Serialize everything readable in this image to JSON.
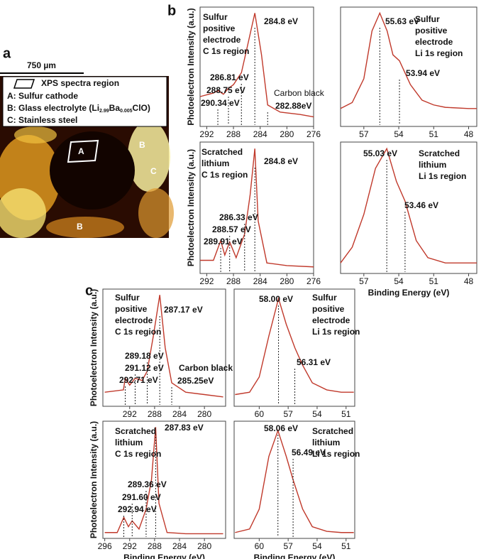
{
  "panel_a": {
    "label": "a",
    "scale": "750 µm",
    "legend": {
      "title": "XPS spectra region",
      "a": "A: Sulfur cathode",
      "b": [
        "B: Glass electrolyte (Li",
        "2.99",
        "Ba",
        "0.005",
        "ClO)"
      ],
      "c": "C: Stainless steel"
    },
    "marks": [
      "A",
      "B",
      "C",
      "B"
    ]
  },
  "panel_labels": [
    "b",
    "c"
  ],
  "chart_data": [
    {
      "type": "line",
      "text": [
        "Sulfur",
        "positive",
        "electrode",
        "C 1s region"
      ],
      "ylabel": "Photoelectron Intensity (a.u.)",
      "xlim": [
        293,
        276
      ],
      "xticks": [
        292,
        288,
        284,
        280,
        276
      ],
      "ylim": [
        0,
        100
      ],
      "annotation": "Carbon black",
      "peaks": [
        {
          "value": 284.8,
          "label": "284.8 eV"
        },
        {
          "value": 286.81,
          "label": "286.81 eV"
        },
        {
          "value": 288.75,
          "label": "288.75 eV"
        },
        {
          "value": 290.34,
          "label": "290.34 eV"
        },
        {
          "value": 282.88,
          "label": "282.88eV"
        }
      ],
      "series": [
        {
          "color": "#c0392b",
          "x": [
            293,
            291,
            290.3,
            289.5,
            288.75,
            288,
            286.81,
            285.8,
            284.8,
            283.8,
            282.88,
            281,
            278,
            276
          ],
          "values": [
            25,
            28,
            30,
            27,
            32,
            35,
            45,
            70,
            95,
            60,
            18,
            12,
            10,
            8
          ]
        }
      ]
    },
    {
      "type": "line",
      "text": [
        "Sulfur",
        "positive",
        "electrode",
        "Li 1s region"
      ],
      "xlim": [
        59,
        47.3
      ],
      "xticks": [
        57,
        54,
        51,
        48
      ],
      "ylim": [
        0,
        100
      ],
      "peaks": [
        {
          "value": 55.63,
          "label": "55.63 eV"
        },
        {
          "value": 53.94,
          "label": "53.94 eV"
        }
      ],
      "series": [
        {
          "color": "#c0392b",
          "x": [
            59,
            58,
            57,
            56.3,
            55.63,
            55,
            54.5,
            53.94,
            53,
            52,
            51,
            50,
            48,
            47.3
          ],
          "values": [
            15,
            20,
            40,
            80,
            95,
            80,
            60,
            55,
            35,
            22,
            18,
            16,
            15,
            15
          ]
        }
      ]
    },
    {
      "type": "line",
      "text": [
        "Scratched",
        "lithium",
        "C 1s region"
      ],
      "ylabel": "Photoelectron Intensity (a.u.)",
      "xlim": [
        293,
        276
      ],
      "xticks": [
        292,
        288,
        284,
        280,
        276
      ],
      "ylim": [
        0,
        100
      ],
      "peaks": [
        {
          "value": 284.8,
          "label": "284.8 eV"
        },
        {
          "value": 286.33,
          "label": "286.33 eV"
        },
        {
          "value": 288.57,
          "label": "288.57 eV"
        },
        {
          "value": 289.91,
          "label": "289.91 eV"
        }
      ],
      "series": [
        {
          "color": "#c0392b",
          "x": [
            293,
            291,
            289.91,
            289.3,
            288.57,
            287.6,
            286.33,
            285.5,
            284.8,
            284.3,
            283,
            280,
            276
          ],
          "values": [
            10,
            10,
            25,
            14,
            24,
            12,
            30,
            60,
            95,
            40,
            8,
            6,
            5
          ]
        }
      ]
    },
    {
      "type": "line",
      "text": [
        "Scratched",
        "lithium",
        "Li 1s region"
      ],
      "xlabel": "Binding Energy (eV)",
      "xlim": [
        59,
        47.3
      ],
      "xticks": [
        57,
        54,
        51,
        48
      ],
      "ylim": [
        0,
        100
      ],
      "peaks": [
        {
          "value": 55.03,
          "label": "55.03 eV"
        },
        {
          "value": 53.46,
          "label": "53.46 eV"
        }
      ],
      "series": [
        {
          "color": "#c0392b",
          "x": [
            59,
            58,
            57,
            56,
            55.03,
            54.2,
            53.46,
            52.5,
            51.5,
            50,
            48,
            47.3
          ],
          "values": [
            8,
            20,
            45,
            80,
            95,
            70,
            55,
            25,
            12,
            8,
            8,
            8
          ]
        }
      ]
    },
    {
      "type": "line",
      "text": [
        "Sulfur",
        "positive",
        "electrode",
        "C 1s region"
      ],
      "ylabel": "Photoelectron Intensity (a.u.)",
      "xlim": [
        296.3,
        276.6
      ],
      "xticks": [
        292,
        288,
        284,
        280
      ],
      "ylim": [
        0,
        100
      ],
      "annotation": "Carbon black",
      "peaks": [
        {
          "value": 287.17,
          "label": "287.17 eV"
        },
        {
          "value": 289.18,
          "label": "289.18 eV"
        },
        {
          "value": 291.12,
          "label": "291.12 eV"
        },
        {
          "value": 292.71,
          "label": "292.71 eV"
        },
        {
          "value": 285.25,
          "label": "285.25eV"
        }
      ],
      "series": [
        {
          "color": "#c0392b",
          "x": [
            296,
            293,
            292.71,
            292,
            291.12,
            290,
            289.18,
            288.2,
            287.17,
            286.3,
            285.25,
            283,
            280,
            277
          ],
          "values": [
            12,
            14,
            24,
            18,
            24,
            22,
            30,
            60,
            95,
            50,
            20,
            12,
            10,
            8
          ]
        }
      ]
    },
    {
      "type": "line",
      "text": [
        "Sulfur",
        "positive",
        "electrode",
        "Li 1s region"
      ],
      "xlim": [
        62.6,
        50.1
      ],
      "xticks": [
        60,
        57,
        54,
        51
      ],
      "ylim": [
        0,
        100
      ],
      "peaks": [
        {
          "value": 58.0,
          "label": "58.00 eV"
        },
        {
          "value": 56.31,
          "label": "56.31 eV"
        }
      ],
      "series": [
        {
          "color": "#c0392b",
          "x": [
            62.5,
            61,
            60,
            59,
            58,
            57.2,
            56.31,
            55.5,
            54.5,
            53,
            51.5,
            50.2
          ],
          "values": [
            10,
            12,
            25,
            60,
            92,
            70,
            50,
            35,
            20,
            14,
            12,
            12
          ]
        }
      ]
    },
    {
      "type": "line",
      "text": [
        "Scratched",
        "lithium",
        "C 1s region"
      ],
      "ylabel": "Photoelectron Intensity (a.u.)",
      "xlabel": "Binding Energy (eV)",
      "xlim": [
        296.3,
        276.6
      ],
      "xticks": [
        296,
        292,
        288,
        284,
        280
      ],
      "ylim": [
        0,
        100
      ],
      "peaks": [
        {
          "value": 287.83,
          "label": "287.83 eV"
        },
        {
          "value": 289.36,
          "label": "289.36 eV"
        },
        {
          "value": 291.6,
          "label": "291.60 eV"
        },
        {
          "value": 292.94,
          "label": "292.94 eV"
        }
      ],
      "series": [
        {
          "color": "#c0392b",
          "x": [
            296,
            294,
            292.94,
            292.2,
            291.6,
            290.5,
            289.36,
            288.5,
            287.83,
            287.3,
            286,
            283,
            280,
            277
          ],
          "values": [
            5,
            5,
            18,
            10,
            15,
            8,
            25,
            50,
            95,
            30,
            5,
            4,
            4,
            4
          ]
        }
      ]
    },
    {
      "type": "line",
      "text": [
        "Scratched",
        "lithium",
        "Li 1s region"
      ],
      "xlabel": "Binding Energy (eV)",
      "xlim": [
        62.6,
        50.1
      ],
      "xticks": [
        60,
        57,
        54,
        51
      ],
      "ylim": [
        0,
        100
      ],
      "peaks": [
        {
          "value": 58.06,
          "label": "58.06 eV"
        },
        {
          "value": 56.49,
          "label": "56.49 eV"
        }
      ],
      "series": [
        {
          "color": "#c0392b",
          "x": [
            62.5,
            61,
            60,
            59,
            58.06,
            57.2,
            56.49,
            55.5,
            54.5,
            53,
            51.5,
            50.2
          ],
          "values": [
            5,
            8,
            25,
            70,
            92,
            70,
            50,
            25,
            10,
            6,
            5,
            5
          ]
        }
      ]
    }
  ]
}
